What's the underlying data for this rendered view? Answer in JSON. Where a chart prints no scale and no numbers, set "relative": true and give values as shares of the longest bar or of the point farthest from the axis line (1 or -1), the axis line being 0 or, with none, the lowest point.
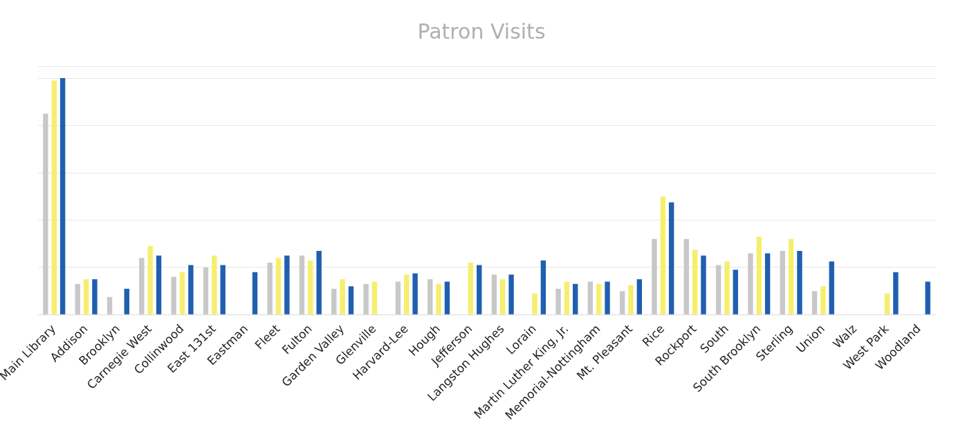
{
  "chart_data": {
    "type": "bar",
    "title": "Patron Visits",
    "relative": true,
    "grid": "y",
    "categories": [
      "Main Library",
      "Addison",
      "Brooklyn",
      "Carnegie West",
      "Collinwood",
      "East 131st",
      "Eastman",
      "Fleet",
      "Fulton",
      "Garden Valley",
      "Glenville",
      "Harvard-Lee",
      "Hough",
      "Jefferson",
      "Langston Hughes",
      "Lorain",
      "Martin Luther King, Jr.",
      "Memorial-Nottingham",
      "Mt. Pleasant",
      "Rice",
      "Rockport",
      "South",
      "South Brooklyn",
      "Sterling",
      "Union",
      "Walz",
      "West Park",
      "Woodland"
    ],
    "series": [
      {
        "color": "#c8c8c8",
        "values": [
          0.85,
          0.13,
          0.075,
          0.24,
          0.16,
          0.2,
          null,
          0.22,
          0.25,
          0.11,
          0.13,
          0.14,
          0.15,
          null,
          0.17,
          null,
          0.11,
          0.14,
          0.1,
          0.32,
          0.32,
          0.21,
          0.26,
          0.27,
          0.1,
          null,
          null,
          null
        ]
      },
      {
        "color": "#f5ef6e",
        "values": [
          0.99,
          0.15,
          null,
          0.29,
          0.18,
          0.25,
          null,
          0.24,
          0.23,
          0.15,
          0.14,
          0.17,
          0.13,
          0.22,
          0.15,
          0.09,
          0.14,
          0.13,
          0.125,
          0.5,
          0.275,
          0.225,
          0.33,
          0.32,
          0.12,
          null,
          0.09,
          null
        ]
      },
      {
        "color": "#1f5fb0",
        "values": [
          1,
          0.15,
          0.11,
          0.25,
          0.21,
          0.21,
          0.18,
          0.25,
          0.27,
          0.12,
          null,
          0.175,
          0.14,
          0.21,
          0.17,
          0.23,
          0.13,
          0.14,
          0.15,
          0.475,
          0.25,
          0.19,
          0.26,
          0.27,
          0.225,
          null,
          0.18,
          0.14
        ]
      }
    ]
  }
}
